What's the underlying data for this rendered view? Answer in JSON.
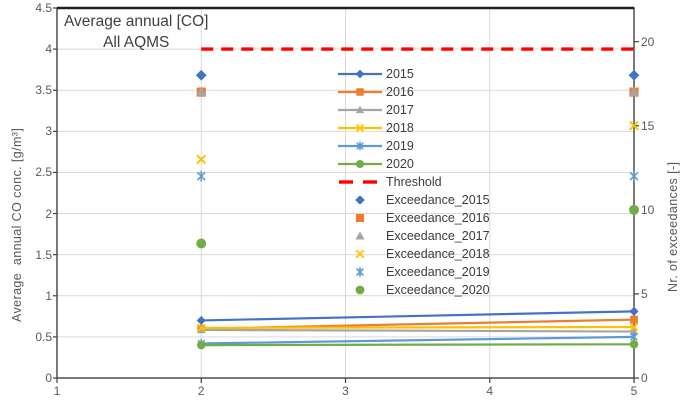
{
  "chart_data": {
    "type": "line",
    "title_line1": "Average annual [CO]",
    "title_line2": "All AQMS",
    "x_axis": {
      "range": [
        1,
        5
      ],
      "tick_labels": [
        "1",
        "2",
        "3",
        "4",
        "5"
      ]
    },
    "left_axis": {
      "label": "Average  annual CO conc. [g/m³]",
      "range": [
        0,
        4.5
      ],
      "tick_labels": [
        "4.5",
        "4",
        "3.5",
        "3",
        "2.5",
        "2",
        "1.5",
        "1",
        "0.5",
        "0"
      ],
      "tick_values": [
        4.5,
        4,
        3.5,
        3,
        2.5,
        2,
        1.5,
        1,
        0.5,
        0
      ]
    },
    "right_axis": {
      "label": "Nr. of exceedances [-]",
      "range": [
        0,
        22
      ],
      "tick_labels": [
        "20",
        "15",
        "10",
        "5",
        "0"
      ],
      "tick_values": [
        20,
        15,
        10,
        5,
        0
      ]
    },
    "grid": true,
    "legend_position": "center",
    "x_points": [
      2,
      5
    ],
    "series": [
      {
        "name": "2015",
        "color": "#4472C4",
        "marker": "diamond",
        "values": [
          0.7,
          0.81
        ]
      },
      {
        "name": "2016",
        "color": "#ED7D31",
        "marker": "square",
        "values": [
          0.6,
          0.71
        ]
      },
      {
        "name": "2017",
        "color": "#A5A5A5",
        "marker": "triangle",
        "values": [
          0.585,
          0.565
        ]
      },
      {
        "name": "2018",
        "color": "#FFC000",
        "marker": "x",
        "values": [
          0.61,
          0.62
        ]
      },
      {
        "name": "2019",
        "color": "#5B9BD5",
        "marker": "asterisk",
        "values": [
          0.42,
          0.5
        ]
      },
      {
        "name": "2020",
        "color": "#70AD47",
        "marker": "circle",
        "values": [
          0.4,
          0.41
        ]
      }
    ],
    "threshold": {
      "name": "Threshold",
      "color": "#FF0000",
      "value": 4.0,
      "axis": "left"
    },
    "exceedance_series": [
      {
        "name": "Exceedance_2015",
        "color": "#4472C4",
        "marker": "diamond",
        "values": [
          18,
          18
        ]
      },
      {
        "name": "Exceedance_2016",
        "color": "#ED7D31",
        "marker": "square",
        "values": [
          17,
          17
        ]
      },
      {
        "name": "Exceedance_2017",
        "color": "#A5A5A5",
        "marker": "triangle",
        "values": [
          17,
          17
        ]
      },
      {
        "name": "Exceedance_2018",
        "color": "#FFC000",
        "marker": "x",
        "values": [
          13,
          15
        ]
      },
      {
        "name": "Exceedance_2019",
        "color": "#5B9BD5",
        "marker": "asterisk",
        "values": [
          12,
          12
        ]
      },
      {
        "name": "Exceedance_2020",
        "color": "#70AD47",
        "marker": "circle",
        "values": [
          8,
          10
        ]
      }
    ]
  },
  "style_colors": {
    "gridline": "#D9D9D9",
    "axis_line": "#404040",
    "tick_text": "#595959",
    "title_text": "#3f3f3f"
  }
}
